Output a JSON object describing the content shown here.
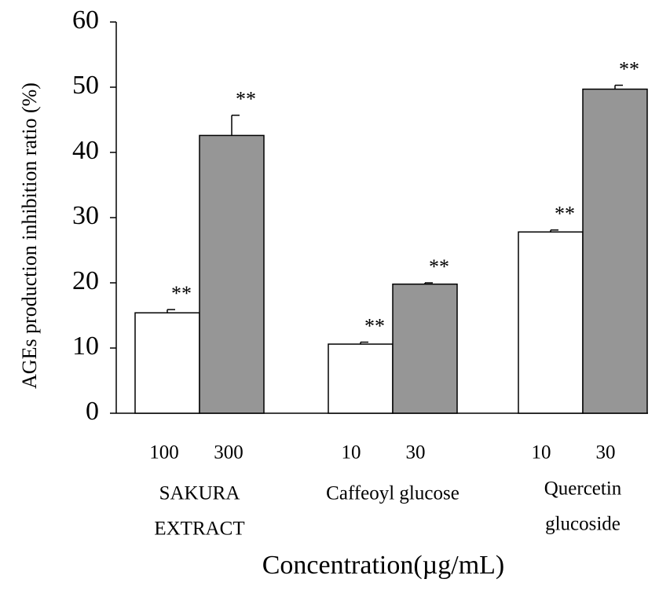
{
  "chart_data": {
    "type": "bar",
    "y_label": "AGEs production inhibition ratio (%)",
    "x_label": "Concentration(µg/mL)",
    "categories": [
      [
        "SAKURA",
        "EXTRACT"
      ],
      [
        "Caffeoyl glucose"
      ],
      [
        "Quercetin",
        "glucoside"
      ]
    ],
    "doses": [
      [
        100,
        300
      ],
      [
        10,
        30
      ],
      [
        10,
        30
      ]
    ],
    "series": [
      {
        "color": "#ffffff",
        "values": [
          15.4,
          10.6,
          27.8
        ],
        "errors": [
          0.5,
          0.3,
          0.3
        ],
        "annotations": [
          "**",
          "**",
          "**"
        ]
      },
      {
        "color": "#969696",
        "values": [
          42.6,
          19.8,
          49.7
        ],
        "errors": [
          3.1,
          0.2,
          0.6
        ],
        "annotations": [
          "**",
          "**",
          "**"
        ]
      }
    ],
    "ylim": [
      0,
      60
    ],
    "yticks": [
      0,
      10,
      20,
      30,
      40,
      50,
      60
    ]
  }
}
